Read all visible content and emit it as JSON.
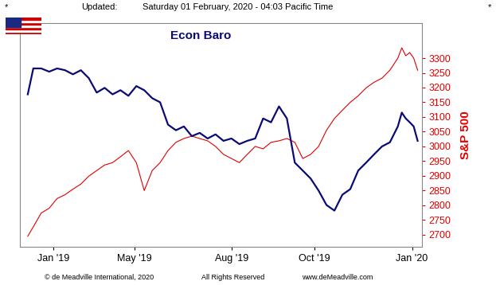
{
  "chart_data": {
    "type": "line",
    "title": "Econ Baro",
    "header": [
      "*",
      "Updated:",
      "Saturday 01 February, 2020 - 04:03 Pacific Time",
      "*"
    ],
    "footer": [
      "© de Meadville International, 2020",
      "All Rights Reserved",
      "www.deMeadville.com"
    ],
    "ylabel": "S&P 500",
    "x": [
      0,
      1.4,
      3.4,
      5.4,
      7.4,
      9.4,
      11.4,
      13.4,
      15.4,
      17.4,
      19.4,
      21.4,
      23.4,
      25.4,
      27.4,
      29.4,
      31.4,
      33.4,
      35.4,
      37.4,
      39.4,
      41.4,
      43.4,
      45.4,
      47.4,
      49.4,
      51.4,
      53.4,
      55.4,
      57.4,
      59.4,
      61.4,
      63.4,
      65.4,
      67.4,
      69.4,
      71.4,
      73.4,
      75.4,
      77.4,
      79.4,
      81.4,
      83.4,
      85.4,
      87.4,
      89.4,
      91.4,
      93.4,
      94.4,
      95.4,
      96.4,
      97.4,
      98.4
    ],
    "xlim": [
      -2,
      99.4
    ],
    "xticks": [
      {
        "value": 6.4,
        "label": "Jan '19"
      },
      {
        "value": 27,
        "label": "May '19"
      },
      {
        "value": 51.4,
        "label": "Aug '19"
      },
      {
        "value": 72.4,
        "label": "Oct '19"
      },
      {
        "value": 97,
        "label": "Jan '20"
      }
    ],
    "ylim": [
      2660,
      3420
    ],
    "yticks": [
      2700,
      2750,
      2800,
      2850,
      2900,
      2950,
      3000,
      3050,
      3100,
      3150,
      3200,
      3250,
      3300
    ],
    "grid": false,
    "series": [
      {
        "color": "#0b0b78",
        "values": [
          3177,
          3265,
          3265,
          3254,
          3265,
          3259,
          3245,
          3259,
          3232,
          3183,
          3199,
          3177,
          3191,
          3172,
          3205,
          3191,
          3164,
          3150,
          3074,
          3055,
          3068,
          3035,
          3046,
          3027,
          3041,
          3019,
          3027,
          3008,
          3019,
          3027,
          3095,
          3082,
          3136,
          3095,
          2945,
          2918,
          2891,
          2850,
          2801,
          2782,
          2836,
          2855,
          2918,
          2945,
          2973,
          3000,
          3014,
          3068,
          3115,
          3095,
          3082,
          3068,
          3019
        ]
      },
      {
        "color": "#e00000",
        "values": [
          2695,
          2727,
          2774,
          2790,
          2823,
          2836,
          2855,
          2872,
          2899,
          2918,
          2937,
          2945,
          2965,
          2986,
          2945,
          2850,
          2918,
          2945,
          2986,
          3014,
          3027,
          3035,
          3027,
          3019,
          3000,
          2973,
          2959,
          2945,
          2973,
          3000,
          2992,
          3014,
          3019,
          3027,
          3014,
          2959,
          2973,
          3000,
          3055,
          3095,
          3123,
          3150,
          3172,
          3199,
          3218,
          3232,
          3259,
          3300,
          3335,
          3308,
          3319,
          3300,
          3259
        ]
      }
    ]
  }
}
